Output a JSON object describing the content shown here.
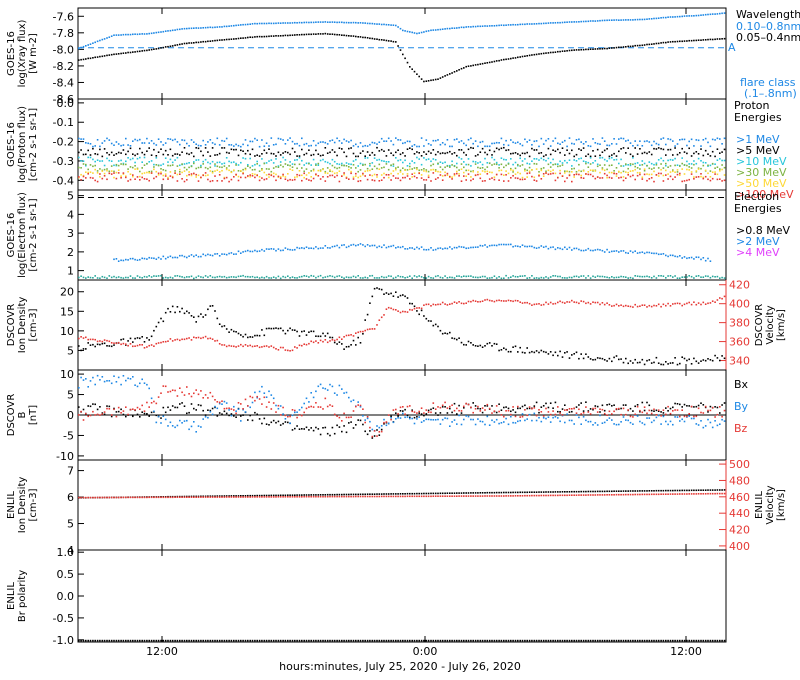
{
  "chart_data": {
    "type": "scatter",
    "xlabel": "hours:minutes, July 25, 2020 - July 26, 2020",
    "xticks": [
      "12:00",
      "0:00",
      "12:00"
    ],
    "panels": [
      {
        "id": "xray",
        "ylabel": [
          "GOES-16",
          "log(Xray flux)",
          "[W m-2]"
        ],
        "ylim": [
          -8.6,
          -7.5
        ],
        "yticks": [
          "-7.6",
          "-7.8",
          "-8.0",
          "-8.2",
          "-8.4",
          "-8.6"
        ],
        "legend_title": "Wavelength",
        "legend": [
          {
            "label": "0.10–0.8nm",
            "color": "#1e88e5"
          },
          {
            "label": "0.05–0.4nm",
            "color": "#000000"
          }
        ],
        "extra_labels": [
          {
            "text": "A",
            "color": "#1e88e5"
          },
          {
            "text": "flare class",
            "color": "#1e88e5"
          },
          {
            "text": "(.1–.8nm)",
            "color": "#1e88e5"
          }
        ],
        "ref_line": -7.98,
        "series": [
          {
            "color": "#1e88e5",
            "x": [
              0,
              5,
              10,
              15,
              20,
              25,
              30,
              35,
              40,
              45,
              46,
              48,
              50,
              55,
              60,
              65,
              70,
              75,
              80,
              84,
              88,
              92
            ],
            "y": [
              -7.98,
              -7.82,
              -7.8,
              -7.74,
              -7.72,
              -7.68,
              -7.67,
              -7.66,
              -7.67,
              -7.7,
              -7.76,
              -7.8,
              -7.76,
              -7.72,
              -7.7,
              -7.68,
              -7.66,
              -7.64,
              -7.63,
              -7.6,
              -7.58,
              -7.55
            ]
          },
          {
            "color": "#000000",
            "x": [
              0,
              5,
              10,
              15,
              20,
              25,
              30,
              35,
              40,
              45,
              47,
              49,
              51,
              55,
              60,
              65,
              70,
              75,
              80,
              84,
              88,
              92
            ],
            "y": [
              -8.12,
              -8.05,
              -8.0,
              -7.92,
              -7.88,
              -7.84,
              -7.82,
              -7.8,
              -7.84,
              -7.9,
              -8.2,
              -8.38,
              -8.35,
              -8.2,
              -8.12,
              -8.05,
              -8.0,
              -7.98,
              -7.94,
              -7.9,
              -7.88,
              -7.86
            ]
          }
        ]
      },
      {
        "id": "proton",
        "ylabel": [
          "GOES-16",
          "log(Proton flux)",
          "[cm-2 s-1 sr-1]"
        ],
        "ylim": [
          -0.45,
          0.02
        ],
        "yticks": [
          "0.0",
          "-0.1",
          "-0.2",
          "-0.3",
          "-0.4"
        ],
        "legend_title": "Proton Energies",
        "legend": [
          {
            "label": ">1 MeV",
            "color": "#1e88e5"
          },
          {
            "label": ">5 MeV",
            "color": "#000000"
          },
          {
            "label": ">10 MeV",
            "color": "#26c6da"
          },
          {
            "label": ">30 MeV",
            "color": "#7cb342"
          },
          {
            "label": ">50 MeV",
            "color": "#fdd835"
          },
          {
            "label": ">100 MeV",
            "color": "#e53935"
          }
        ],
        "series": [
          {
            "color": "#1e88e5",
            "x": [
              0,
              92
            ],
            "y": [
              -0.2,
              -0.2
            ]
          },
          {
            "color": "#000000",
            "x": [
              0,
              92
            ],
            "y": [
              -0.25,
              -0.25
            ]
          },
          {
            "color": "#26c6da",
            "x": [
              0,
              92
            ],
            "y": [
              -0.3,
              -0.3
            ]
          },
          {
            "color": "#7cb342",
            "x": [
              0,
              92
            ],
            "y": [
              -0.33,
              -0.33
            ]
          },
          {
            "color": "#fdd835",
            "x": [
              0,
              92
            ],
            "y": [
              -0.36,
              -0.36
            ]
          },
          {
            "color": "#e53935",
            "x": [
              0,
              92
            ],
            "y": [
              -0.38,
              -0.38
            ]
          }
        ]
      },
      {
        "id": "electron",
        "ylabel": [
          "GOES-16",
          "log(Electron flux)",
          "[cm-2 s-1 sr-1]"
        ],
        "ylim": [
          0.5,
          5.3
        ],
        "yticks": [
          "5",
          "4",
          "3",
          "2",
          "1"
        ],
        "legend_title": "Electron Energies",
        "legend": [
          {
            "label": ">0.8 MeV",
            "color": "#000000"
          },
          {
            "label": ">2 MeV",
            "color": "#1e88e5"
          },
          {
            "label": ">4 MeV",
            "color": "#e040fb"
          }
        ],
        "ref_line": 4.9,
        "series": [
          {
            "color": "#1e88e5",
            "x": [
              5,
              10,
              15,
              20,
              25,
              30,
              35,
              40,
              45,
              50,
              55,
              60,
              65,
              70,
              75,
              80,
              85,
              90
            ],
            "y": [
              1.6,
              1.7,
              1.8,
              1.9,
              2.1,
              2.2,
              2.3,
              2.4,
              2.3,
              2.2,
              2.3,
              2.4,
              2.3,
              2.2,
              2.1,
              2.0,
              1.8,
              1.6
            ]
          },
          {
            "color": "#26a69a",
            "x": [
              0,
              92
            ],
            "y": [
              0.7,
              0.7
            ]
          }
        ]
      },
      {
        "id": "density",
        "ylabel": [
          "DSCOVR",
          "Ion Density",
          "[cm-3]"
        ],
        "ylim": [
          0,
          23
        ],
        "yticks": [
          "20",
          "15",
          "10",
          "5"
        ],
        "right_ylabel": [
          "DSCOVR",
          "Velocity",
          "[km/s]"
        ],
        "right_ylim": [
          330,
          425
        ],
        "right_yticks": [
          "420",
          "400",
          "380",
          "360",
          "340"
        ],
        "series": [
          {
            "color": "#000000",
            "x": [
              0,
              5,
              10,
              11,
              13,
              15,
              17,
              19,
              20,
              22,
              25,
              28,
              30,
              35,
              38,
              40,
              42,
              44,
              46,
              48,
              50,
              55,
              60,
              65,
              70,
              75,
              80,
              85,
              90,
              92
            ],
            "y": [
              6,
              7,
              8,
              11,
              16,
              15,
              13,
              17,
              11,
              10,
              9,
              11,
              10,
              9,
              6,
              8,
              21,
              20,
              19,
              16,
              12,
              7,
              6,
              5,
              4,
              3,
              2.5,
              2.5,
              3,
              3
            ]
          },
          {
            "color": "#e53935",
            "axis": "right",
            "x": [
              0,
              5,
              10,
              12,
              15,
              18,
              21,
              24,
              27,
              30,
              33,
              36,
              40,
              42,
              44,
              46,
              50,
              55,
              60,
              65,
              70,
              75,
              80,
              85,
              90,
              92
            ],
            "y": [
              365,
              360,
              355,
              362,
              363,
              365,
              357,
              356,
              355,
              352,
              360,
              362,
              370,
              375,
              398,
              392,
              400,
              402,
              405,
              400,
              403,
              400,
              398,
              400,
              402,
              410
            ]
          }
        ]
      },
      {
        "id": "bfield",
        "ylabel": [
          "DSCOVR",
          "B",
          "[nT]"
        ],
        "ylim": [
          -11,
          11
        ],
        "yticks": [
          "10",
          "5",
          "0",
          "-5",
          "-10"
        ],
        "legend": [
          {
            "label": "Bx",
            "color": "#000000"
          },
          {
            "label": "By",
            "color": "#1e88e5"
          },
          {
            "label": "Bz",
            "color": "#e53935"
          }
        ],
        "series": [
          {
            "color": "#000000",
            "x": [
              0,
              5,
              10,
              15,
              20,
              25,
              30,
              35,
              40,
              42,
              45,
              50,
              55,
              60,
              65,
              70,
              75,
              80,
              85,
              90,
              92
            ],
            "y": [
              2,
              1,
              0,
              2,
              1,
              0,
              -3,
              -4,
              -2,
              -5,
              0,
              1,
              2,
              2,
              2,
              2,
              2,
              2,
              2,
              2,
              2
            ]
          },
          {
            "color": "#1e88e5",
            "x": [
              0,
              5,
              10,
              11,
              14,
              17,
              20,
              23,
              26,
              30,
              34,
              38,
              42,
              45,
              50,
              55,
              60,
              65,
              70,
              75,
              80,
              85,
              90,
              92
            ],
            "y": [
              8,
              9,
              8,
              -1,
              -2,
              -3,
              3,
              0,
              7,
              -1,
              7,
              6,
              -3,
              0,
              -2,
              -1,
              -1,
              0,
              -1,
              -1,
              -1,
              -1,
              -2,
              -2
            ]
          },
          {
            "color": "#e53935",
            "x": [
              0,
              5,
              10,
              12,
              15,
              18,
              20,
              22,
              25,
              28,
              30,
              32,
              35,
              38,
              40,
              42,
              45,
              50,
              55,
              60,
              65,
              70,
              75,
              80,
              85,
              90,
              92
            ],
            "y": [
              0,
              1,
              2,
              6,
              6,
              5,
              3,
              1,
              5,
              2,
              0,
              1,
              3,
              -1,
              2,
              -5,
              1,
              2,
              2,
              1,
              1,
              1,
              1,
              1,
              1,
              1,
              1
            ]
          }
        ]
      },
      {
        "id": "enlil_density",
        "ylabel": [
          "ENLIL",
          "Ion Density",
          "[cm-3]"
        ],
        "ylim": [
          4,
          7.4
        ],
        "yticks": [
          "7",
          "6",
          "5",
          "4"
        ],
        "right_ylabel": [
          "ENLIL",
          "Velocity",
          "[km/s]"
        ],
        "right_ylim": [
          395,
          505
        ],
        "right_yticks": [
          "500",
          "480",
          "460",
          "440",
          "420",
          "400"
        ],
        "series": [
          {
            "color": "#000000",
            "x": [
              0,
              30,
              60,
              92
            ],
            "y": [
              6.0,
              6.1,
              6.2,
              6.3
            ]
          },
          {
            "color": "#e53935",
            "axis": "right",
            "x": [
              0,
              30,
              60,
              92
            ],
            "y": [
              460,
              461,
              462,
              465
            ]
          }
        ]
      },
      {
        "id": "enlil_polarity",
        "ylabel": [
          "ENLIL",
          "Br polarity"
        ],
        "ylim": [
          -1.05,
          1.05
        ],
        "yticks": [
          "1.0",
          "0.5",
          "0.0",
          "-0.5",
          "-1.0"
        ],
        "series": [
          {
            "color": "#000000",
            "x": [
              0,
              92
            ],
            "y": [
              -1.0,
              -1.0
            ]
          }
        ]
      }
    ]
  }
}
